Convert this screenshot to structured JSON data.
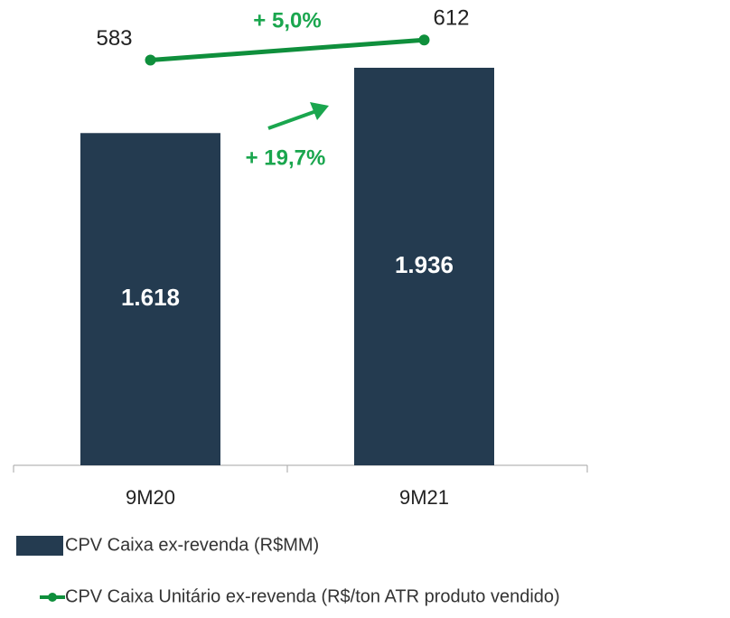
{
  "chart_data": {
    "type": "bar",
    "categories": [
      "9M20",
      "9M21"
    ],
    "series": [
      {
        "name": "CPV Caixa ex-revenda (R$MM)",
        "type": "bar",
        "color": "#243b50",
        "values": [
          1618,
          1936
        ],
        "value_labels": [
          "1.618",
          "1.936"
        ]
      },
      {
        "name": "CPV Caixa Unitário ex-revenda (R$/ton ATR produto vendido)",
        "type": "line",
        "axis": "y2",
        "color": "#0f8f3c",
        "values": [
          583,
          612
        ]
      }
    ],
    "ylim": [
      0,
      2200
    ],
    "y2lim": [
      0,
      650
    ],
    "annotations": [
      "+ 5,0%",
      "+ 19,7%"
    ],
    "annotation_color": "#1aa64e"
  }
}
